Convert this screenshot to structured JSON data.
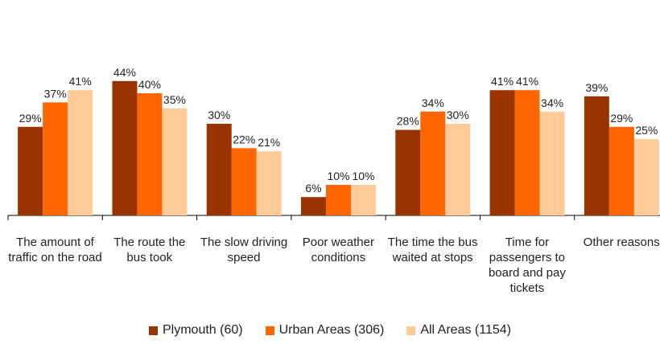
{
  "chart_data": {
    "type": "bar",
    "categories": [
      "The amount of traffic on the road",
      "The route the bus took",
      "The slow driving speed",
      "Poor weather conditions",
      "The time the bus waited at stops",
      "Time for passengers to board and pay tickets",
      "Other reasons"
    ],
    "series": [
      {
        "name": "Plymouth (60)",
        "color": "#993300",
        "values": [
          29,
          44,
          30,
          6,
          28,
          41,
          39
        ],
        "value_labels": [
          "29%",
          "44%",
          "30%",
          "6%",
          "28%",
          "41%",
          "39%"
        ]
      },
      {
        "name": "Urban Areas (306)",
        "color": "#ff6600",
        "values": [
          37,
          40,
          22,
          10,
          34,
          41,
          29
        ],
        "value_labels": [
          "37%",
          "40%",
          "22%",
          "10%",
          "34%",
          "41%",
          "29%"
        ]
      },
      {
        "name": "All Areas (1154)",
        "color": "#ffcc99",
        "values": [
          41,
          35,
          21,
          10,
          30,
          34,
          25
        ],
        "value_labels": [
          "41%",
          "35%",
          "21%",
          "10%",
          "30%",
          "34%",
          "25%"
        ]
      }
    ],
    "ylim": [
      0,
      45
    ]
  }
}
